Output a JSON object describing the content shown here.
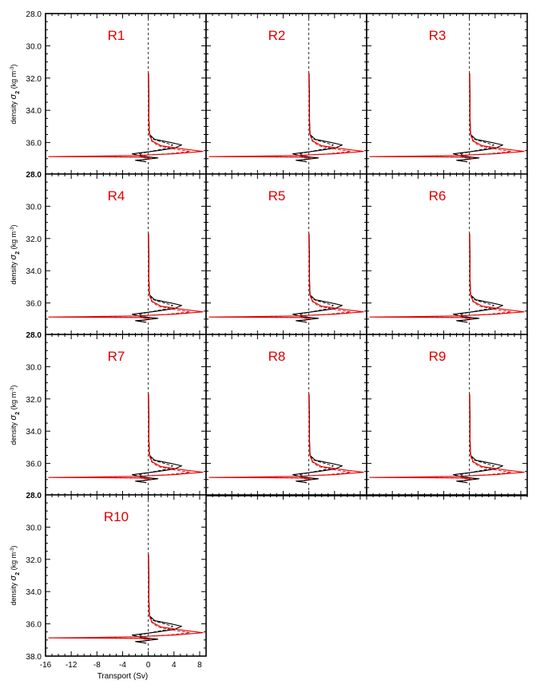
{
  "figure": {
    "ylabel_prefix": "density ",
    "ylabel_sigma": "σ",
    "ylabel_sub": "2",
    "ylabel_unit_open": " (kg m",
    "ylabel_unit_exp": "-3",
    "ylabel_unit_close": ")",
    "xlabel": "Transport (Sv)",
    "colors": {
      "reference": "#000000",
      "model": "#e00000",
      "panel_label": "#e00000"
    }
  },
  "chart_data": {
    "type": "line",
    "xlim": [
      -16,
      9
    ],
    "ylim": [
      38,
      28
    ],
    "x_ticks": [
      -16,
      -12,
      -8,
      -4,
      0,
      4,
      8
    ],
    "y_ticks": [
      38.0,
      36.0,
      34.0,
      32.0,
      30.0,
      28.0
    ],
    "y_tick_labels": [
      "38.0",
      "36.0",
      "34.0",
      "32.0",
      "30.0",
      "28.0"
    ],
    "zero_line": "dashed",
    "grid": false,
    "panels": [
      {
        "label": "R1"
      },
      {
        "label": "R2"
      },
      {
        "label": "R3"
      },
      {
        "label": "R4"
      },
      {
        "label": "R5"
      },
      {
        "label": "R6"
      },
      {
        "label": "R7"
      },
      {
        "label": "R8"
      },
      {
        "label": "R9"
      },
      {
        "label": "R10"
      }
    ],
    "series": [
      {
        "color": "black",
        "style": "solid",
        "y": [
          31.7,
          33.0,
          34.5,
          35.5,
          35.8,
          36.0,
          36.15,
          36.35,
          36.5,
          36.7,
          36.85,
          36.95,
          37.05,
          37.1,
          37.2
        ],
        "x": [
          0.05,
          0.1,
          0.1,
          0.2,
          1.0,
          3.5,
          5.2,
          4.0,
          1.5,
          -2.5,
          -1.0,
          1.5,
          -0.5,
          -2.0,
          -0.3
        ]
      },
      {
        "color": "black",
        "style": "dashed",
        "y": [
          31.7,
          33.0,
          34.5,
          35.5,
          35.8,
          36.0,
          36.15,
          36.35,
          36.5,
          36.7,
          36.85,
          36.95,
          37.05,
          37.15
        ],
        "x": [
          0.0,
          0.05,
          0.1,
          0.15,
          0.8,
          2.5,
          3.8,
          3.0,
          1.0,
          -1.5,
          -0.5,
          1.0,
          -0.3,
          -1.5
        ]
      },
      {
        "color": "red",
        "style": "solid",
        "y": [
          31.7,
          33.0,
          34.5,
          35.5,
          35.9,
          36.2,
          36.4,
          36.55,
          36.7,
          36.8,
          36.85,
          36.87,
          36.9,
          37.0
        ],
        "x": [
          0.05,
          0.05,
          0.1,
          0.2,
          0.6,
          2.0,
          5.5,
          8.5,
          4.0,
          -2.0,
          -10.0,
          -15.5,
          -1.0,
          0.5
        ]
      },
      {
        "color": "red",
        "style": "dashed",
        "y": [
          31.7,
          33.0,
          34.5,
          35.5,
          35.9,
          36.2,
          36.4,
          36.55,
          36.7,
          36.8,
          36.85,
          36.87,
          36.9,
          37.0
        ],
        "x": [
          0.0,
          0.05,
          0.05,
          0.15,
          0.5,
          1.5,
          4.0,
          6.5,
          3.0,
          -1.5,
          -8.0,
          -14.0,
          -1.5,
          0.2
        ]
      }
    ]
  }
}
